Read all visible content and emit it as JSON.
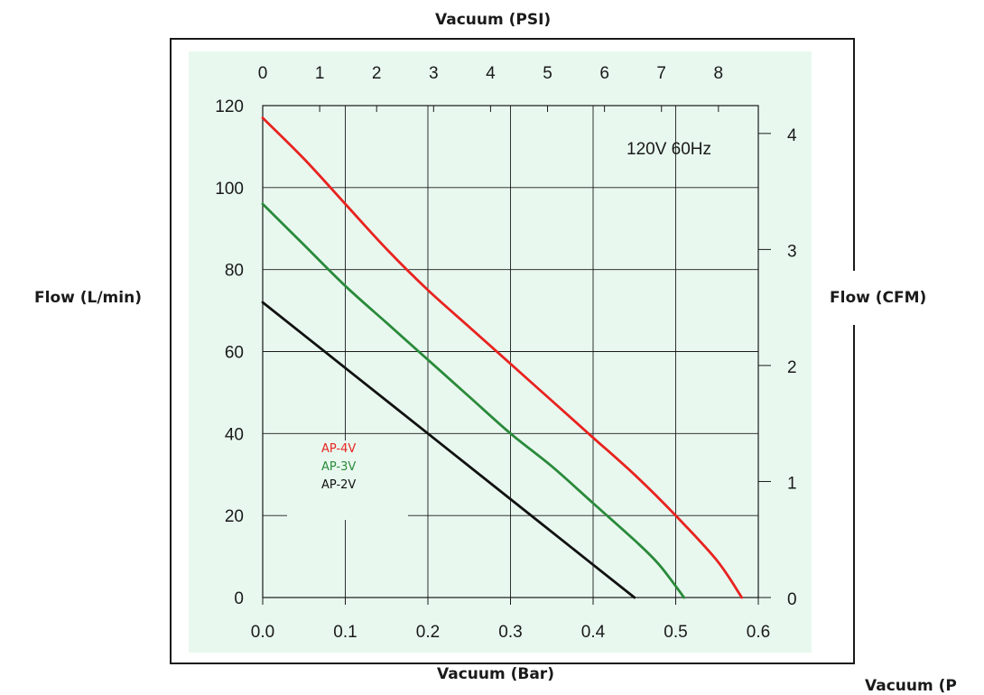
{
  "chart_data": {
    "type": "line",
    "annotation": "120V 60Hz",
    "axes": {
      "bottom": {
        "label": "Vacuum (Bar)",
        "range": [
          0.0,
          0.6
        ],
        "ticks": [
          "0.0",
          "0.1",
          "0.2",
          "0.3",
          "0.4",
          "0.5",
          "0.6"
        ]
      },
      "top": {
        "label": "Vacuum (PSI)",
        "range": [
          0,
          8.7
        ],
        "ticks": [
          "0",
          "1",
          "2",
          "3",
          "4",
          "5",
          "6",
          "7",
          "8"
        ]
      },
      "left": {
        "label": "Flow  (L/min)",
        "range": [
          0,
          120
        ],
        "ticks": [
          "0",
          "20",
          "40",
          "60",
          "80",
          "100",
          "120"
        ]
      },
      "right": {
        "label": "Flow  (CFM)",
        "range": [
          0,
          4.24
        ],
        "ticks": [
          "0",
          "1",
          "2",
          "3",
          "4"
        ]
      }
    },
    "extra_label": "Vacuum (P",
    "grid": true,
    "legend_position": "lower-left",
    "series": [
      {
        "name": "AP-4V",
        "color": "#e8231f",
        "x": [
          0.0,
          0.05,
          0.1,
          0.15,
          0.2,
          0.25,
          0.3,
          0.35,
          0.4,
          0.45,
          0.5,
          0.55,
          0.58
        ],
        "y": [
          117,
          107,
          96,
          85,
          75,
          66,
          57,
          48,
          39,
          30,
          20,
          9,
          0
        ]
      },
      {
        "name": "AP-3V",
        "color": "#2a8a3a",
        "x": [
          0.0,
          0.05,
          0.1,
          0.15,
          0.2,
          0.25,
          0.3,
          0.35,
          0.4,
          0.45,
          0.48,
          0.51
        ],
        "y": [
          96,
          86,
          76,
          67,
          58,
          49,
          40,
          32,
          23,
          14,
          8,
          0
        ]
      },
      {
        "name": "AP-2V",
        "color": "#111111",
        "x": [
          0.0,
          0.1,
          0.2,
          0.3,
          0.4,
          0.45
        ],
        "y": [
          72,
          56,
          40,
          24,
          8,
          0
        ]
      }
    ]
  }
}
